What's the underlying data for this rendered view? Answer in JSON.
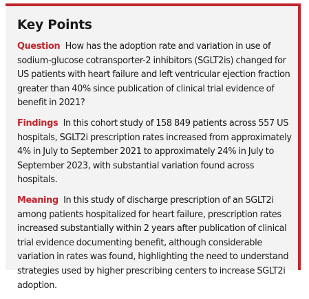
{
  "panel": {
    "title": "Key Points",
    "accent_color": "#c0262d",
    "background_color": "#f3f3f3"
  },
  "sections": [
    {
      "label": "Question",
      "text": "How has the adoption rate and variation in use of sodium-glucose cotransporter-2 inhibitors (SGLT2is) changed for US patients with heart failure and left ventricular ejection fraction greater than 40% since publication of clinical trial evidence of benefit in 2021?"
    },
    {
      "label": "Findings",
      "text": "In this cohort study of 158 849 patients across 557 US hospitals, SGLT2i prescription rates increased from approximately 4% in July to September 2021 to approximately 24% in July to September 2023, with substantial variation found across hospitals."
    },
    {
      "label": "Meaning",
      "text": "In this study of discharge prescription of an SGLT2i among patients hospitalized for heart failure, prescription rates increased substantially within 2 years after publication of clinical trial evidence documenting benefit, although considerable variation in rates was found, highlighting the need to understand strategies used by higher prescribing centers to increase SGLT2i adoption."
    }
  ]
}
